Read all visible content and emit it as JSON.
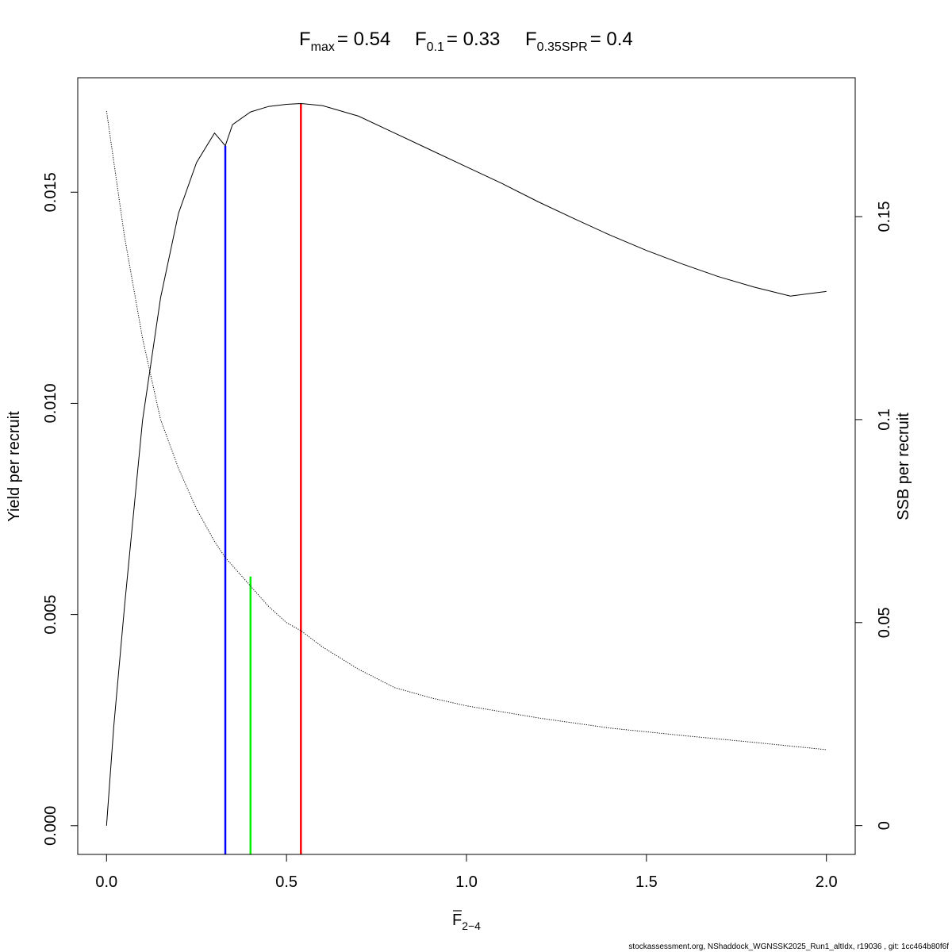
{
  "chart_data": {
    "type": "line",
    "title": {
      "fmax": {
        "sym": "F",
        "sub": "max",
        "val": "= 0.54"
      },
      "f01": {
        "sym": "F",
        "sub": "0.1",
        "val": "= 0.33"
      },
      "fspr": {
        "sym": "F",
        "sub": "0.35SPR",
        "val": "= 0.4"
      }
    },
    "xlabel": {
      "sym": "F",
      "sub": "2−4"
    },
    "ylabel_left": "Yield per recruit",
    "ylabel_right": "SSB per recruit",
    "footer": "stockassessment.org, NShaddock_WGNSSK2025_Run1_altIdx, r19036 , git: 1cc464b80f6f",
    "x_ticks": [
      "0.0",
      "0.5",
      "1.0",
      "1.5",
      "2.0"
    ],
    "x_tick_values": [
      0,
      0.5,
      1.0,
      1.5,
      2.0
    ],
    "y_left_ticks": [
      "0.000",
      "0.005",
      "0.010",
      "0.015"
    ],
    "y_left_tick_values": [
      0,
      0.005,
      0.01,
      0.015
    ],
    "y_right_ticks": [
      "0",
      "0.05",
      "0.1",
      "0.15"
    ],
    "y_right_tick_values": [
      0,
      0.05,
      0.1,
      0.15
    ],
    "xlim": [
      -0.08,
      2.08
    ],
    "ylim_left": [
      -0.00068,
      0.01771
    ],
    "ylim_right": [
      -0.0071,
      0.1842
    ],
    "grid": false,
    "series": [
      {
        "name": "Yield per recruit",
        "axis": "left",
        "style": "solid",
        "color": "#000000",
        "x": [
          0,
          0.02,
          0.05,
          0.1,
          0.15,
          0.2,
          0.25,
          0.3,
          0.33,
          0.35,
          0.4,
          0.45,
          0.5,
          0.54,
          0.6,
          0.7,
          0.8,
          0.9,
          1.0,
          1.1,
          1.2,
          1.3,
          1.4,
          1.5,
          1.6,
          1.7,
          1.8,
          1.9,
          2.0
        ],
        "y": [
          0,
          0.00235,
          0.0052,
          0.0096,
          0.0125,
          0.0145,
          0.0157,
          0.0164,
          0.0161,
          0.0166,
          0.0169,
          0.01703,
          0.01708,
          0.0171,
          0.01705,
          0.0168,
          0.0164,
          0.016,
          0.0156,
          0.0152,
          0.01477,
          0.01437,
          0.01398,
          0.01362,
          0.0133,
          0.013,
          0.01275,
          0.01254,
          0.01265
        ]
      },
      {
        "name": "SSB per recruit",
        "axis": "right",
        "style": "dotted",
        "color": "#000000",
        "x": [
          0,
          0.05,
          0.1,
          0.15,
          0.2,
          0.25,
          0.3,
          0.33,
          0.35,
          0.4,
          0.45,
          0.5,
          0.54,
          0.6,
          0.7,
          0.8,
          0.9,
          1.0,
          1.2,
          1.4,
          1.6,
          1.8,
          2.0
        ],
        "y": [
          0.176,
          0.145,
          0.12,
          0.1,
          0.088,
          0.078,
          0.07,
          0.066,
          0.064,
          0.059,
          0.054,
          0.05,
          0.048,
          0.044,
          0.0385,
          0.034,
          0.0315,
          0.0295,
          0.0265,
          0.024,
          0.0222,
          0.0205,
          0.0187
        ]
      }
    ],
    "reference_lines": [
      {
        "label": "Fmax",
        "x": 0.54,
        "y_top": 0.01709,
        "color": "#ff0000"
      },
      {
        "label": "F0.1",
        "x": 0.33,
        "y_top": 0.0161,
        "color": "#0000ff"
      },
      {
        "label": "F0.35SPR",
        "x": 0.4,
        "y_top": 0.0059,
        "color": "#00ee00"
      }
    ]
  }
}
